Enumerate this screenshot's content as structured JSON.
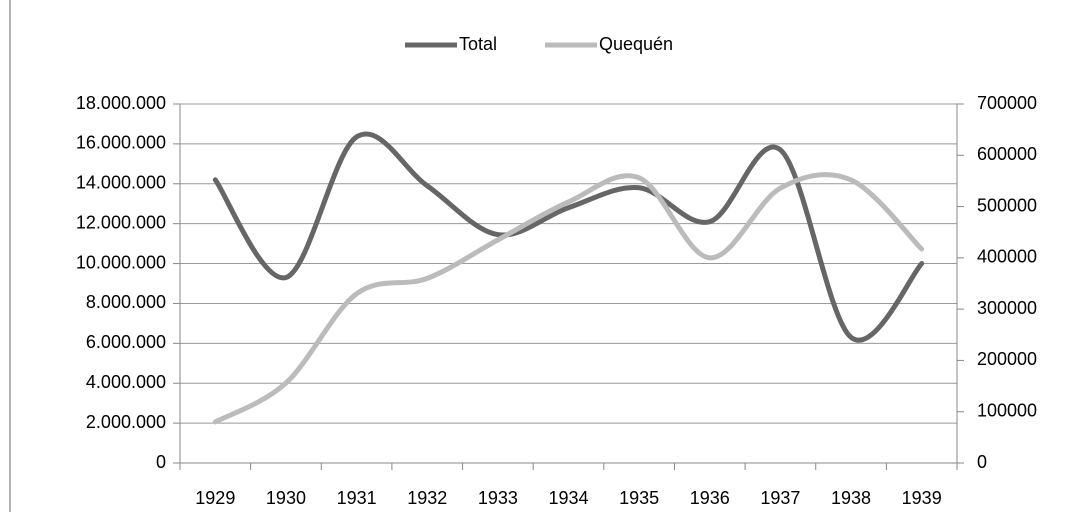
{
  "chart_data": {
    "type": "line",
    "categories": [
      "1929",
      "1930",
      "1931",
      "1932",
      "1933",
      "1934",
      "1935",
      "1936",
      "1937",
      "1938",
      "1939"
    ],
    "series": [
      {
        "name": "Total",
        "color": "#666666",
        "values": [
          14200000,
          9300000,
          16350000,
          13900000,
          11450000,
          12800000,
          13800000,
          12100000,
          15700000,
          6300000,
          10000000
        ]
      },
      {
        "name": "Quequén",
        "color": "#bbbbbb",
        "axis": "y2",
        "values": [
          80000,
          156000,
          330000,
          360000,
          435000,
          509000,
          556000,
          400000,
          536000,
          552000,
          417000
        ]
      }
    ],
    "ylim": [
      0,
      18000000
    ],
    "yticks": [
      {
        "value": 0,
        "label": "0"
      },
      {
        "value": 2000000,
        "label": "2.000.000"
      },
      {
        "value": 4000000,
        "label": "4.000.000"
      },
      {
        "value": 6000000,
        "label": "6.000.000"
      },
      {
        "value": 8000000,
        "label": "8.000.000"
      },
      {
        "value": 10000000,
        "label": "10.000.000"
      },
      {
        "value": 12000000,
        "label": "12.000.000"
      },
      {
        "value": 14000000,
        "label": "14.000.000"
      },
      {
        "value": 16000000,
        "label": "16.000.000"
      },
      {
        "value": 18000000,
        "label": "18.000.000"
      }
    ],
    "y2lim": [
      0,
      700000
    ],
    "y2ticks": [
      0,
      100000,
      200000,
      300000,
      400000,
      500000,
      600000,
      700000
    ],
    "grid": true,
    "legend": "top"
  }
}
